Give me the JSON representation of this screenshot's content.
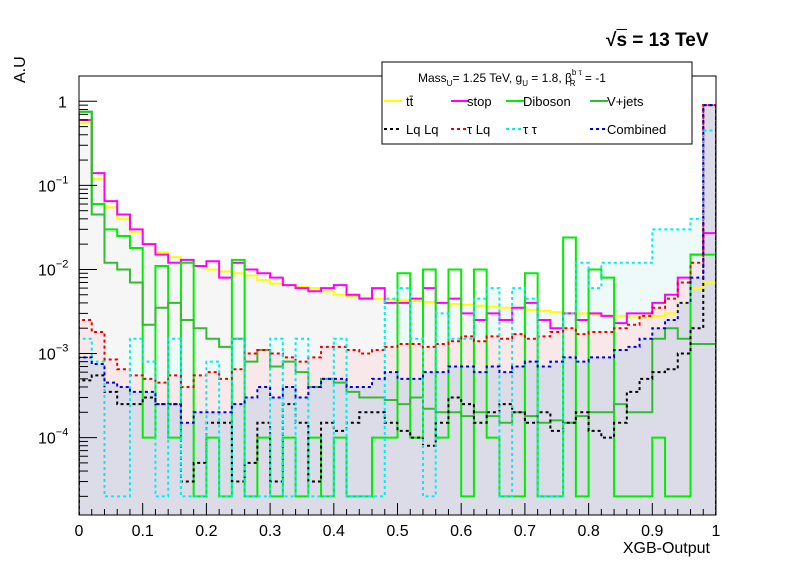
{
  "header": {
    "energy_label": "= 13 TeV",
    "sqrt_symbol": "√",
    "sqrt_arg": "s"
  },
  "legend": {
    "header": {
      "mass": "Mass",
      "mass_sub": "U",
      "mass_val": "= 1.25 TeV, g",
      "g_sub": "U",
      "g_val": " = 1.8, β",
      "beta_sup": "b τ",
      "beta_sub": "R",
      "beta_val": " = -1"
    },
    "entries": [
      {
        "label": "tt̄",
        "color": "#ffff00",
        "dash": false
      },
      {
        "label": "stop",
        "color": "#ff00ff",
        "dash": false
      },
      {
        "label": "Diboson",
        "color": "#00ee00",
        "dash": false
      },
      {
        "label": "V+jets",
        "color": "#33bb33",
        "dash": false
      },
      {
        "label": "Lq Lq",
        "color": "#000000",
        "dash": true
      },
      {
        "label": "τ Lq",
        "color": "#ee0000",
        "dash": true
      },
      {
        "label": "τ  τ",
        "color": "#00eeee",
        "dash": true
      },
      {
        "label": "Combined",
        "color": "#0000dd",
        "dash": true
      }
    ]
  },
  "chart_data": {
    "type": "histogram",
    "xlabel": "XGB-Output",
    "ylabel": "A.U",
    "xlim": [
      0,
      1
    ],
    "ylim": [
      1.2e-05,
      2
    ],
    "log_y": true,
    "x_ticks": [
      "0",
      "0.1",
      "0.2",
      "0.3",
      "0.4",
      "0.5",
      "0.6",
      "0.7",
      "0.8",
      "0.9",
      "1"
    ],
    "y_ticks": [
      {
        "value": 1,
        "label": "1"
      },
      {
        "value": 0.1,
        "label": "10",
        "exp": "−1"
      },
      {
        "value": 0.01,
        "label": "10",
        "exp": "−2"
      },
      {
        "value": 0.001,
        "label": "10",
        "exp": "−3"
      },
      {
        "value": 0.0001,
        "label": "10",
        "exp": "−4"
      }
    ],
    "bins": 50,
    "series": [
      {
        "name": "tt̄",
        "color": "#ffff00",
        "style": "solid",
        "values": [
          0.55,
          0.12,
          0.055,
          0.04,
          0.028,
          0.02,
          0.016,
          0.014,
          0.012,
          0.011,
          0.01,
          0.0095,
          0.009,
          0.0085,
          0.0075,
          0.0068,
          0.0065,
          0.0062,
          0.006,
          0.0055,
          0.005,
          0.0048,
          0.0046,
          0.0045,
          0.0044,
          0.0043,
          0.0042,
          0.0041,
          0.004,
          0.0039,
          0.0038,
          0.0037,
          0.0036,
          0.0035,
          0.0034,
          0.0033,
          0.0032,
          0.0031,
          0.003,
          0.003,
          0.0029,
          0.0028,
          0.0028,
          0.0027,
          0.0027,
          0.0028,
          0.003,
          0.004,
          0.006,
          0.007
        ]
      },
      {
        "name": "stop",
        "color": "#ff00ff",
        "style": "solid",
        "values": [
          0.6,
          0.14,
          0.065,
          0.045,
          0.03,
          0.02,
          0.015,
          0.012,
          0.013,
          0.011,
          0.0125,
          0.008,
          0.012,
          0.01,
          0.009,
          0.008,
          0.0065,
          0.006,
          0.0055,
          0.006,
          0.0065,
          0.005,
          0.0045,
          0.006,
          0.004,
          0.004,
          0.0045,
          0.006,
          0.004,
          0.0045,
          0.003,
          0.0025,
          0.003,
          0.0025,
          0.0035,
          0.004,
          0.0025,
          0.002,
          0.003,
          0.0025,
          0.003,
          0.0028,
          0.0023,
          0.003,
          0.003,
          0.004,
          0.005,
          0.008,
          0.015,
          0.027
        ]
      },
      {
        "name": "Diboson",
        "color": "#00ee00",
        "style": "solid",
        "values": [
          0.75,
          0.06,
          0.03,
          0.025,
          0.018,
          0.0001,
          0.011,
          0.0001,
          0.012,
          2e-05,
          0.0001,
          2e-05,
          0.013,
          2e-05,
          0.0001,
          2e-05,
          0.0001,
          2e-05,
          0.0001,
          2e-05,
          0.0001,
          2e-05,
          2e-05,
          0.0001,
          0.0001,
          0.009,
          0.0001,
          0.01,
          0.0001,
          0.01,
          2e-05,
          0.01,
          0.0001,
          2e-05,
          2e-05,
          0.009,
          2e-05,
          2e-05,
          0.024,
          2e-05,
          0.01,
          0.008,
          2e-05,
          2e-05,
          2e-05,
          0.0001,
          2e-05,
          2e-05,
          0.015,
          0.015
        ]
      },
      {
        "name": "V+jets",
        "color": "#33bb33",
        "style": "solid",
        "values": [
          0.75,
          0.045,
          0.012,
          0.01,
          0.007,
          0.0022,
          0.0035,
          0.004,
          0.0025,
          0.002,
          0.0015,
          0.0012,
          0.0015,
          0.0008,
          0.0011,
          0.0007,
          0.0008,
          0.0006,
          0.0004,
          0.0005,
          0.00045,
          0.00035,
          0.0003,
          0.0003,
          0.00028,
          0.00025,
          0.0003,
          0.00022,
          0.0002,
          0.0002,
          0.00018,
          0.0002,
          0.00018,
          0.00015,
          0.0002,
          0.00018,
          0.00015,
          0.00016,
          0.00015,
          0.00018,
          0.0002,
          0.0002,
          0.00025,
          0.0002,
          0.0002,
          0.0015,
          0.002,
          0.0015,
          0.0013,
          0.0013
        ]
      },
      {
        "name": "Lq Lq",
        "color": "#000000",
        "style": "dashed",
        "values": [
          0.00048,
          0.00055,
          0.00035,
          0.00025,
          0.00025,
          0.0003,
          0.00025,
          0.00025,
          3e-05,
          5e-05,
          0.00015,
          0.00015,
          3e-05,
          5e-05,
          0.00015,
          3e-05,
          0.00025,
          0.00015,
          3e-05,
          0.00015,
          0.00012,
          0.00015,
          0.0002,
          0.0002,
          0.00015,
          0.00012,
          0.0001,
          8e-05,
          0.00015,
          0.0003,
          0.00025,
          0.00015,
          0.0002,
          0.00025,
          0.0002,
          0.00015,
          0.0002,
          0.00012,
          0.00015,
          0.0002,
          0.00012,
          0.0001,
          0.00015,
          0.00035,
          0.0005,
          0.0006,
          0.00065,
          0.001,
          0.002,
          0.9
        ]
      },
      {
        "name": "τ Lq",
        "color": "#ee0000",
        "style": "dashed",
        "values": [
          0.0025,
          0.0018,
          0.00085,
          0.00065,
          0.00055,
          0.0005,
          0.00045,
          0.00055,
          0.0004,
          0.00055,
          0.0006,
          0.0005,
          0.00065,
          0.001,
          0.0011,
          0.001,
          0.0009,
          0.0008,
          0.0009,
          0.0012,
          0.0012,
          0.0011,
          0.001,
          0.0011,
          0.0012,
          0.0013,
          0.0013,
          0.0012,
          0.0013,
          0.0014,
          0.0016,
          0.0014,
          0.0016,
          0.0015,
          0.0017,
          0.0015,
          0.0016,
          0.0018,
          0.002,
          0.0017,
          0.0018,
          0.0018,
          0.002,
          0.0022,
          0.0028,
          0.0035,
          0.0045,
          0.007,
          0.012,
          0.9
        ]
      },
      {
        "name": "τ  τ",
        "color": "#00eeee",
        "style": "dashed",
        "values": [
          0.0015,
          0.0008,
          2e-05,
          2e-05,
          0.0015,
          0.0008,
          2e-05,
          0.0015,
          2e-05,
          2e-05,
          0.0008,
          2e-05,
          0.0015,
          2e-05,
          2e-05,
          0.0015,
          2e-05,
          0.0015,
          2e-05,
          2e-05,
          0.0015,
          2e-05,
          2e-05,
          2e-05,
          0.0045,
          0.006,
          0.0015,
          2e-05,
          0.003,
          0.0015,
          0.0015,
          0.0045,
          0.006,
          2e-05,
          0.006,
          0.0045,
          2e-05,
          2e-05,
          0.003,
          0.012,
          0.006,
          0.012,
          0.012,
          0.012,
          0.012,
          0.03,
          0.03,
          0.03,
          0.04,
          0.45
        ]
      },
      {
        "name": "Combined",
        "color": "#0000dd",
        "style": "dashed",
        "values": [
          0.0009,
          0.00075,
          0.00045,
          0.0004,
          0.00035,
          0.00035,
          0.00025,
          0.00025,
          0.00015,
          0.0002,
          0.0002,
          0.0002,
          0.00025,
          0.0003,
          0.0004,
          0.0003,
          0.0004,
          0.0003,
          0.0004,
          0.0005,
          0.0005,
          0.0004,
          0.0004,
          0.0005,
          0.0006,
          0.0005,
          0.0005,
          0.0006,
          0.0006,
          0.0007,
          0.0007,
          0.0006,
          0.0007,
          0.0006,
          0.0007,
          0.0008,
          0.0007,
          0.0008,
          0.0009,
          0.0008,
          0.0009,
          0.0009,
          0.0011,
          0.0012,
          0.0015,
          0.002,
          0.0025,
          0.004,
          0.008,
          0.9
        ]
      }
    ]
  }
}
